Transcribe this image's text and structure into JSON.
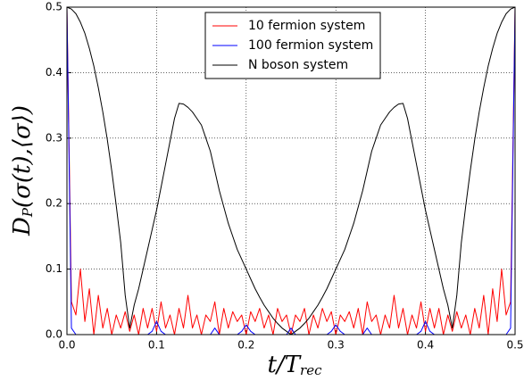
{
  "chart_data": {
    "type": "line",
    "x_label": {
      "main": "t/T",
      "sub": "rec"
    },
    "y_label": {
      "main": "D",
      "sub": "P",
      "rest": "(σ(t),⟨σ⟩)"
    },
    "x": [
      0,
      0.005,
      0.01,
      0.015,
      0.02,
      0.025,
      0.03,
      0.035,
      0.04,
      0.045,
      0.05,
      0.055,
      0.06,
      0.065,
      0.07,
      0.075,
      0.08,
      0.085,
      0.09,
      0.095,
      0.1,
      0.105,
      0.11,
      0.115,
      0.12,
      0.125,
      0.13,
      0.135,
      0.14,
      0.145,
      0.15,
      0.155,
      0.16,
      0.165,
      0.17,
      0.175,
      0.18,
      0.185,
      0.19,
      0.195,
      0.2,
      0.205,
      0.21,
      0.215,
      0.22,
      0.225,
      0.23,
      0.235,
      0.24,
      0.245,
      0.25,
      0.255,
      0.26,
      0.265,
      0.27,
      0.275,
      0.28,
      0.285,
      0.29,
      0.295,
      0.3,
      0.305,
      0.31,
      0.315,
      0.32,
      0.325,
      0.33,
      0.335,
      0.34,
      0.345,
      0.35,
      0.355,
      0.36,
      0.365,
      0.37,
      0.375,
      0.38,
      0.385,
      0.39,
      0.395,
      0.4,
      0.405,
      0.41,
      0.415,
      0.42,
      0.425,
      0.43,
      0.435,
      0.44,
      0.445,
      0.45,
      0.455,
      0.46,
      0.465,
      0.47,
      0.475,
      0.48,
      0.485,
      0.49,
      0.495,
      0.5
    ],
    "series": [
      {
        "name": "10 fermion system",
        "color": "#ff0000",
        "values": [
          0.5,
          0.05,
          0.03,
          0.1,
          0.02,
          0.07,
          0,
          0.06,
          0.01,
          0.04,
          0,
          0.03,
          0.01,
          0.035,
          0.005,
          0.03,
          0,
          0.04,
          0.01,
          0.04,
          0.005,
          0.05,
          0.01,
          0.03,
          0,
          0.04,
          0.01,
          0.06,
          0.01,
          0.03,
          0,
          0.03,
          0.02,
          0.05,
          0,
          0.04,
          0.01,
          0.035,
          0.02,
          0.03,
          0,
          0.035,
          0.02,
          0.04,
          0.01,
          0.03,
          0,
          0.04,
          0.02,
          0.03,
          0,
          0.03,
          0.02,
          0.04,
          0,
          0.03,
          0.01,
          0.04,
          0.02,
          0.035,
          0,
          0.03,
          0.02,
          0.035,
          0.01,
          0.04,
          0,
          0.05,
          0.02,
          0.03,
          0,
          0.03,
          0.01,
          0.06,
          0.01,
          0.04,
          0,
          0.03,
          0.01,
          0.05,
          0.005,
          0.04,
          0.01,
          0.04,
          0,
          0.03,
          0.005,
          0.035,
          0.01,
          0.03,
          0,
          0.04,
          0.01,
          0.06,
          0,
          0.07,
          0.02,
          0.1,
          0.03,
          0.05,
          0.5
        ]
      },
      {
        "name": "100 fermion system",
        "color": "#0000ff",
        "values": [
          0.5,
          0.01,
          0,
          0,
          0,
          0,
          0,
          0,
          0,
          0,
          0,
          0,
          0,
          0,
          0,
          0,
          0,
          0,
          0,
          0.005,
          0.02,
          0.005,
          0,
          0,
          0,
          0,
          0,
          0,
          0,
          0,
          0,
          0,
          0,
          0.01,
          0,
          0,
          0,
          0,
          0,
          0.005,
          0.015,
          0.005,
          0,
          0,
          0,
          0,
          0,
          0,
          0,
          0,
          0.01,
          0,
          0,
          0,
          0,
          0,
          0,
          0,
          0,
          0.005,
          0.015,
          0.005,
          0,
          0,
          0,
          0,
          0,
          0.01,
          0,
          0,
          0,
          0,
          0,
          0,
          0,
          0,
          0,
          0,
          0,
          0.005,
          0.02,
          0.005,
          0,
          0,
          0,
          0,
          0,
          0,
          0,
          0,
          0,
          0,
          0,
          0,
          0,
          0,
          0,
          0,
          0,
          0.01,
          0.5
        ]
      },
      {
        "name": "N boson system",
        "color": "#000000",
        "values": [
          0.5,
          0.497,
          0.49,
          0.477,
          0.46,
          0.437,
          0.41,
          0.377,
          0.34,
          0.298,
          0.25,
          0.197,
          0.14,
          0.06,
          0.01,
          0.045,
          0.07,
          0.1,
          0.13,
          0.16,
          0.19,
          0.225,
          0.26,
          0.295,
          0.33,
          0.353,
          0.352,
          0.347,
          0.34,
          0.33,
          0.32,
          0.3,
          0.28,
          0.25,
          0.22,
          0.195,
          0.17,
          0.15,
          0.13,
          0.115,
          0.1,
          0.085,
          0.07,
          0.057,
          0.045,
          0.035,
          0.025,
          0.017,
          0.01,
          0.005,
          0,
          0.005,
          0.01,
          0.017,
          0.025,
          0.035,
          0.045,
          0.057,
          0.07,
          0.085,
          0.1,
          0.115,
          0.13,
          0.15,
          0.17,
          0.195,
          0.22,
          0.25,
          0.28,
          0.3,
          0.32,
          0.33,
          0.34,
          0.347,
          0.352,
          0.353,
          0.33,
          0.295,
          0.26,
          0.225,
          0.19,
          0.16,
          0.13,
          0.1,
          0.07,
          0.045,
          0.01,
          0.06,
          0.14,
          0.197,
          0.25,
          0.298,
          0.34,
          0.377,
          0.41,
          0.437,
          0.46,
          0.477,
          0.49,
          0.497,
          0.5
        ]
      }
    ],
    "xlim": [
      0,
      0.5
    ],
    "ylim": [
      0,
      0.5
    ],
    "xticks": [
      {
        "value": 0,
        "label": "0.0"
      },
      {
        "value": 0.1,
        "label": "0.1"
      },
      {
        "value": 0.2,
        "label": "0.2"
      },
      {
        "value": 0.3,
        "label": "0.3"
      },
      {
        "value": 0.4,
        "label": "0.4"
      },
      {
        "value": 0.5,
        "label": "0.5"
      }
    ],
    "yticks": [
      {
        "value": 0,
        "label": "0.0"
      },
      {
        "value": 0.1,
        "label": "0.1"
      },
      {
        "value": 0.2,
        "label": "0.2"
      },
      {
        "value": 0.3,
        "label": "0.3"
      },
      {
        "value": 0.4,
        "label": "0.4"
      },
      {
        "value": 0.5,
        "label": "0.5"
      }
    ],
    "grid": true,
    "legend": "upper center"
  }
}
